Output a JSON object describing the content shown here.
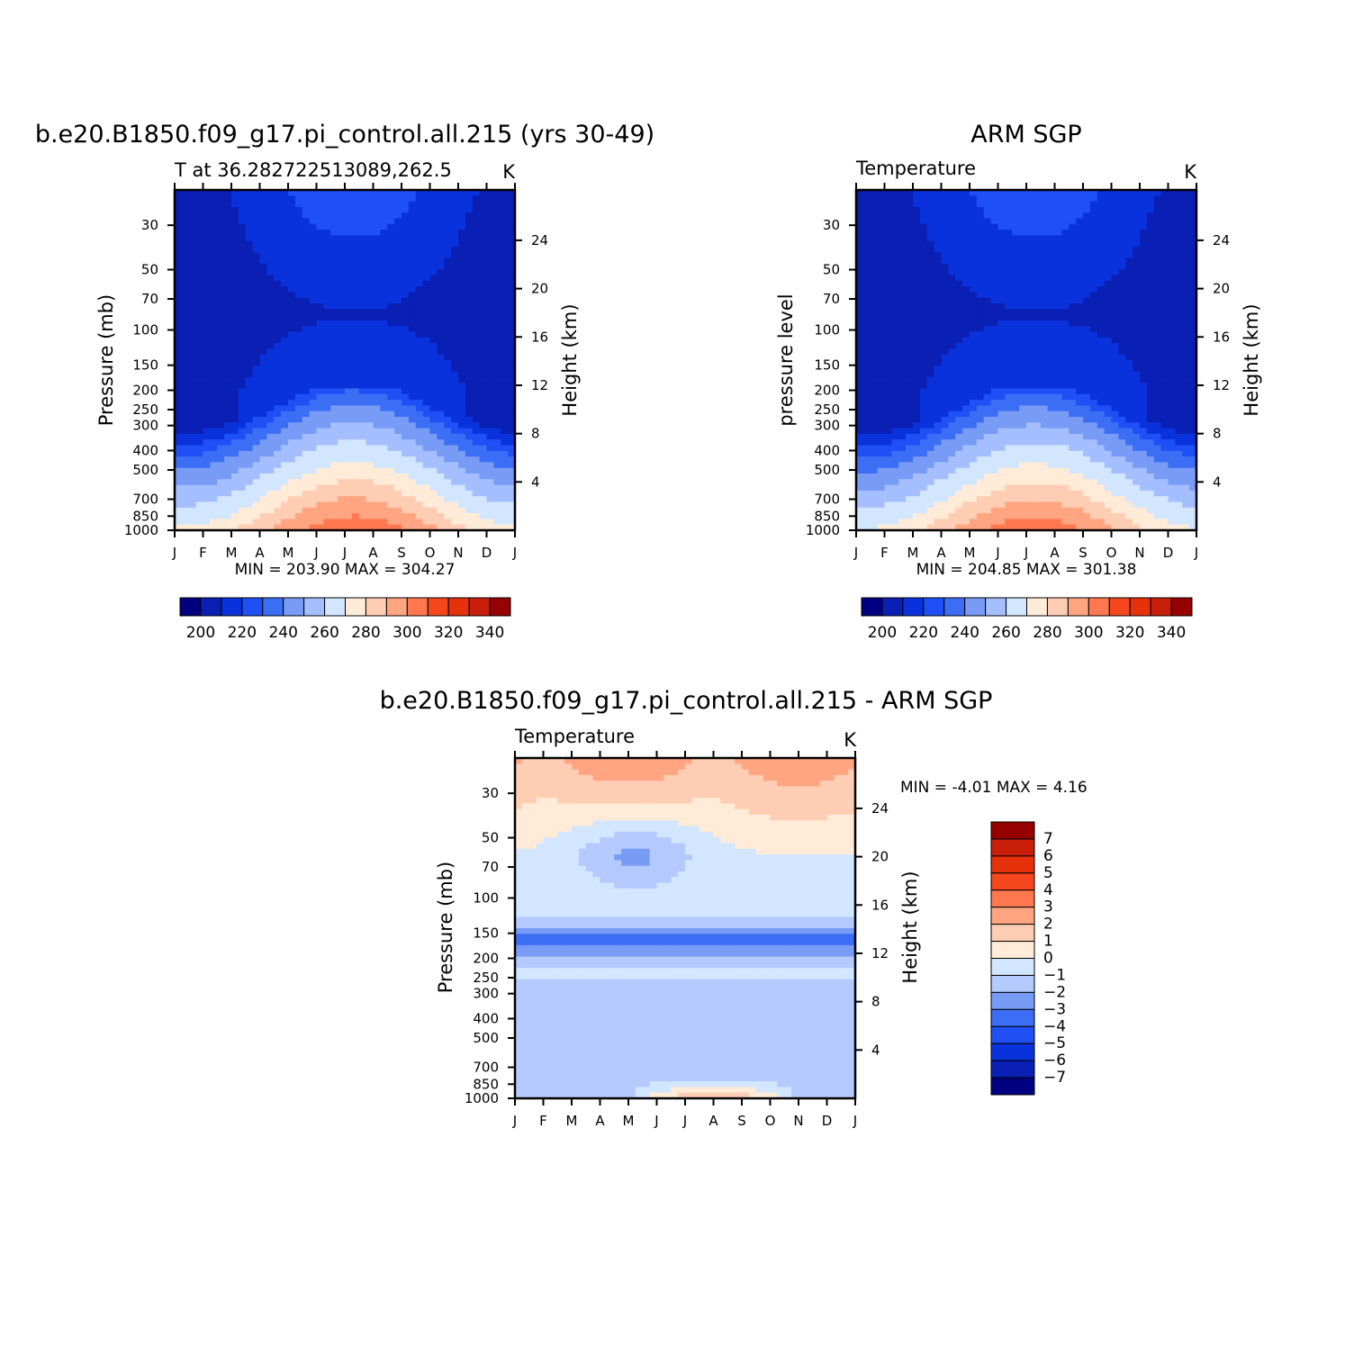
{
  "chart_data": [
    {
      "type": "heatmap",
      "title": "b.e20.B1850.f09_g17.pi_control.all.215 (yrs 30-49)",
      "subtitle": "T at 36.282722513089,262.5",
      "units": "K",
      "xlabel": "",
      "ylabel": "Pressure (mb)",
      "ylabel_right": "Height (km)",
      "x_ticks": [
        "J",
        "F",
        "M",
        "A",
        "M",
        "J",
        "J",
        "A",
        "S",
        "O",
        "N",
        "D",
        "J"
      ],
      "y_ticks": [
        30,
        50,
        70,
        100,
        150,
        200,
        250,
        300,
        400,
        500,
        700,
        850,
        1000
      ],
      "y_right_ticks": [
        4,
        8,
        12,
        16,
        20,
        24
      ],
      "ylim": [
        1000,
        20
      ],
      "y_scale": "log",
      "min_label": "MIN = 203.90 MAX = 304.27",
      "min": 203.9,
      "max": 304.27,
      "colorbar": {
        "orientation": "horizontal",
        "levels": [
          195,
          200,
          205,
          210,
          215,
          220,
          225,
          230,
          235,
          240,
          245,
          250,
          255,
          260,
          265,
          270,
          275,
          280,
          285,
          290,
          295,
          300,
          305,
          310,
          315,
          320,
          325,
          330,
          335,
          340,
          345
        ],
        "label_values": [
          200,
          220,
          240,
          260,
          280,
          300,
          320,
          340
        ]
      },
      "grid": false
    },
    {
      "type": "heatmap",
      "title": "ARM SGP",
      "subtitle": "Temperature",
      "units": "K",
      "xlabel": "",
      "ylabel": "pressure level",
      "ylabel_right": "Height (km)",
      "x_ticks": [
        "J",
        "F",
        "M",
        "A",
        "M",
        "J",
        "J",
        "A",
        "S",
        "O",
        "N",
        "D",
        "J"
      ],
      "y_ticks": [
        30,
        50,
        70,
        100,
        150,
        200,
        250,
        300,
        400,
        500,
        700,
        850,
        1000
      ],
      "y_right_ticks": [
        4,
        8,
        12,
        16,
        20,
        24
      ],
      "ylim": [
        1000,
        20
      ],
      "y_scale": "log",
      "min_label": "MIN = 204.85 MAX = 301.38",
      "min": 204.85,
      "max": 301.38,
      "colorbar": {
        "orientation": "horizontal",
        "label_values": [
          200,
          220,
          240,
          260,
          280,
          300,
          320,
          340
        ]
      },
      "grid": false
    },
    {
      "type": "heatmap",
      "title": "b.e20.B1850.f09_g17.pi_control.all.215 - ARM SGP",
      "subtitle": "Temperature",
      "units": "K",
      "xlabel": "",
      "ylabel": "Pressure (mb)",
      "ylabel_right": "Height (km)",
      "x_ticks": [
        "J",
        "F",
        "M",
        "A",
        "M",
        "J",
        "J",
        "A",
        "S",
        "O",
        "N",
        "D",
        "J"
      ],
      "y_ticks": [
        30,
        50,
        70,
        100,
        150,
        200,
        250,
        300,
        400,
        500,
        700,
        850,
        1000
      ],
      "y_right_ticks": [
        4,
        8,
        12,
        16,
        20,
        24
      ],
      "ylim": [
        1000,
        20
      ],
      "y_scale": "log",
      "min_label": "MIN = -4.01 MAX = 4.16",
      "min": -4.01,
      "max": 4.16,
      "colorbar": {
        "orientation": "vertical",
        "label_values": [
          7,
          6,
          5,
          4,
          3,
          2,
          1,
          0,
          -1,
          -2,
          -3,
          -4,
          -5,
          -6,
          -7
        ]
      },
      "grid": false
    }
  ],
  "palette": {
    "cb_blue_red": [
      "#000080",
      "#0a1fb4",
      "#0a32dc",
      "#1e50f5",
      "#3c6ef5",
      "#789bf5",
      "#a5beff",
      "#d2e6ff",
      "#ffebd7",
      "#ffcdb4",
      "#ffa582",
      "#ff7850",
      "#f5461e",
      "#e6320a",
      "#c81e0a",
      "#960000"
    ],
    "diff": [
      "#000080",
      "#0a1fb4",
      "#0a32dc",
      "#1e50f5",
      "#3c6ef5",
      "#789bf5",
      "#b4caff",
      "#d2e6ff",
      "#ffebd7",
      "#ffcdb4",
      "#ffa582",
      "#ff7850",
      "#f5461e",
      "#e6320a",
      "#c81e0a",
      "#960000"
    ]
  }
}
